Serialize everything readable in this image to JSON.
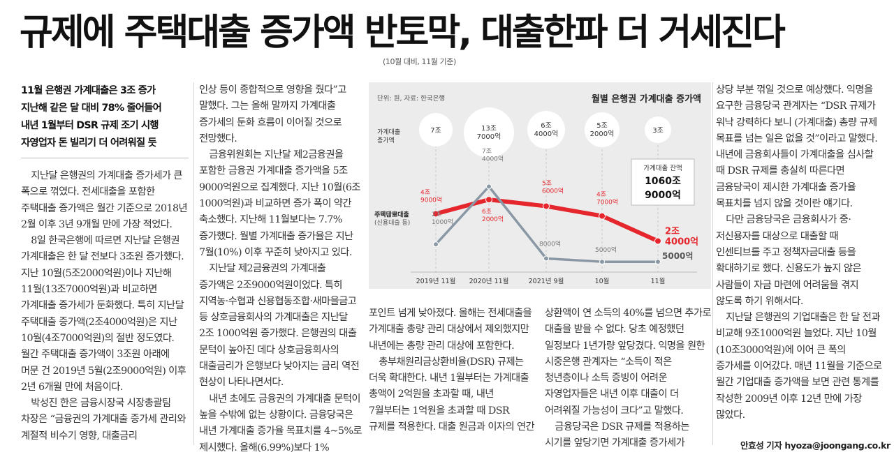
{
  "headline": "규제에 주택대출 증가액 반토막, 대출한파 더 거세진다",
  "chart_caption": "(10월 대비, 11월 기준)",
  "lead": [
    "11월 은행권 가계대출은 3조 증가",
    "지난해 같은 달 대비 78% 줄어들어",
    "내년 1월부터 DSR 규제 조기 시행",
    "자영업자 돈 빌리기 더 어려워질 듯"
  ],
  "col1": [
    "지난달 은행권의 가계대출 증가세가 큰 폭으로 꺾였다. 전세대출을 포함한 주택대출 증가액은 월간 기준으로 2018년 2월 이후 3년 9개월 만에 가장 적었다.",
    "8일 한국은행에 따르면 지난달 은행권 가계대출은 한 달 전보다 3조원 증가했다. 지난 10월(5조2000억원)이나 지난해 11월(13조7000억원)과 비교하면 가계대출 증가세가 둔화했다. 특히 지난달 주택대출 증가액(2조4000억원)은 지난 10월(4조7000억원)의 절반 정도였다. 월간 주택대출 증가액이 3조원 아래에 머문 건 2019년 5월(2조9000억원) 이후 2년 6개월 만에 처음이다.",
    "박성진 한은 금융시장국 시장총괄팀 차장은 “금융권의 가계대출 증가세 관리와 계절적 비수기 영향, 대출금리"
  ],
  "col2": [
    "인상 등이 종합적으로 영향을 줬다”고 말했다. 그는 올해 말까지 가계대출 증가세의 둔화 흐름이 이어질 것으로 전망했다.",
    "금융위원회는 지난달 제2금융권을 포함한 금융권 가계대출 증가액을 5조 9000억원으로 집계했다. 지난 10월(6조 1000억원)과 비교하면 증가 폭이 약간 축소했다. 지난해 11월보다는 7.7% 증가했다. 월별 가계대출 증가율은 지난 7월(10%) 이후 꾸준히 낮아지고 있다.",
    "지난달 제2금융권의 가계대출 증가액은 2조9000억원이었다. 특히 지역농·수협과 신용협동조합·새마을금고 등 상호금융회사의 가계대출은 지난달 2조 1000억원 증가했다. 은행권의 대출 문턱이 높아진 데다 상호금융회사의 대출금리가 은행보다 낮아지는 금리 역전 현상이 나타나면서다.",
    "내년 초에도 금융권의 가계대출 문턱이 높을 수밖에 없는 상황이다. 금융당국은 내년 가계대출 증가율 목표치를 4~5%로 제시했다. 올해(6.99%)보다 1%"
  ],
  "col3": [
    "포인트 넘게 낮아졌다. 올해는 전세대출을 가계대출 총량 관리 대상에서 제외했지만 내년에는 총량 관리 대상에 포함한다.",
    "총부채원리금상환비율(DSR) 규제는 더욱 확대한다. 내년 1월부터는 가계대출 총액이 2억원을 초과할 때, 내년 7월부터는 1억원을 초과할 때 DSR 규제를 적용한다. 대출 원금과 이자의 연간"
  ],
  "col4": [
    "상환액이 연 소득의 40%를 넘으면 추가로 대출을 받을 수 없다. 당초 예정했던 일정보다 1년가량 앞당겼다. 익명을 원한 시중은행 관계자는 “소득이 적은 청년층이나 소득 증빙이 어려운 자영업자들은 내년 이후 대출이 더 어려워질 가능성이 크다”고 말했다.",
    "금융당국은 DSR 규제를 적용하는 시기를 앞당기면 가계대출 증가세가"
  ],
  "col5": [
    "상당 부분 꺾일 것으로 예상했다. 익명을 요구한 금융당국 관계자는 “DSR 규제가 워낙 강력하다 보니 (가계대출) 총량 규제 목표를 넘는 일은 없을 것”이라고 말했다. 내년에 금융회사들이 가계대출을 심사할 때 DSR 규제를 충실히 따른다면 금융당국이 제시한 가계대출 증가율 목표치를 넘지 않을 것이란 얘기다.",
    "다만 금융당국은 금융회사가 중·저신용자를 대상으로 대출할 때 인센티브를 주고 정책자금대출 등을 확대하기로 했다. 신용도가 높지 않은 사람들이 자금 마련에 어려움을 겪지 않도록 하기 위해서다.",
    "지난달 은행권의 기업대출은 한 달 전과 비교해 9조1000억원 늘었다. 지난 10월(10조3000억원)에 이어 큰 폭의 증가세를 이어갔다. 매년 11월을 기준으로 월간 기업대출 증가액을 보면 관련 통계를 작성한 2009년 이후 12년 만에 가장 많았다."
  ],
  "byline": "안효성 기자 hyoza@joongang.co.kr",
  "chart_data": {
    "type": "line",
    "title": "월별 은행권 가계대출 증가액",
    "source": "단위: 원, 자료: 한국은행",
    "categories": [
      "2019년 11월",
      "2020년 11월",
      "2021년 9월",
      "10월",
      "11월"
    ],
    "totals_label": "가계대출 증가액",
    "totals": [
      "7조",
      "13조 7000억",
      "6조 4000억",
      "5조 2000억",
      "3조"
    ],
    "balance_label": "가계대출 잔액",
    "balance_value": "1060조 9000억",
    "series": [
      {
        "name": "주택담보대출",
        "values": [
          4.9,
          6.2,
          5.6,
          4.7,
          2.4
        ],
        "labels": [
          "4조 9000억",
          "6조 2000억",
          "5조 6000억",
          "4조 7000억",
          "2조 4000억"
        ]
      },
      {
        "name": "기타대출 (신용대출 등)",
        "values": [
          2.1,
          7.4,
          0.8,
          0.5,
          0.5
        ],
        "labels": [
          "2조 1000억",
          "7조 4000억",
          "8000억",
          "5000억",
          "5000억"
        ]
      }
    ],
    "colors": {
      "housing": "#e5262d",
      "other": "#8a98a5",
      "background": "#ececec"
    }
  }
}
